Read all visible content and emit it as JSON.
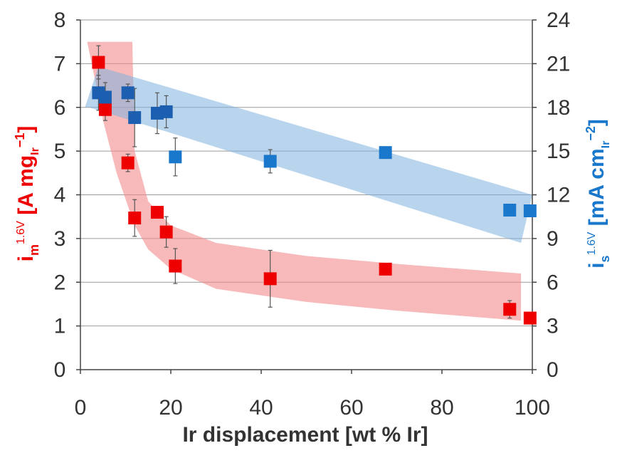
{
  "chart_data": {
    "type": "scatter",
    "title": "",
    "xlabel": "Ir displacement [wt % Ir]",
    "ylabel_left": {
      "main": "i",
      "sub": "m",
      "sup": "1.6V",
      "unit": " [A mg",
      "unit_sub": "Ir",
      "unit_sup": "−1",
      "unit_end": "]"
    },
    "ylabel_right": {
      "main": "i",
      "sub": "s",
      "sup": "1.6V",
      "unit": " [mA cm",
      "unit_sub": "Ir",
      "unit_sup": "−2",
      "unit_end": "]"
    },
    "xlim": [
      0,
      100
    ],
    "ylim_left": [
      0,
      8
    ],
    "ylim_right": [
      0,
      24
    ],
    "x_ticks": [
      "0",
      "20",
      "40",
      "60",
      "80",
      "100"
    ],
    "y_ticks_left": [
      "0",
      "1",
      "2",
      "3",
      "4",
      "5",
      "6",
      "7",
      "8"
    ],
    "y_ticks_right": [
      "0",
      "3",
      "6",
      "9",
      "12",
      "15",
      "18",
      "21",
      "24"
    ],
    "grid": true,
    "series": [
      {
        "axis": "left",
        "color": "#ee0000",
        "points": [
          {
            "x": 4,
            "y": 7.03,
            "err": 0.38
          },
          {
            "x": 5.5,
            "y": 5.95,
            "err": 0.25
          },
          {
            "x": 10.5,
            "y": 4.73,
            "err": 0.2
          },
          {
            "x": 12,
            "y": 3.47,
            "err": 0.42
          },
          {
            "x": 17,
            "y": 3.6,
            "err": 0.12
          },
          {
            "x": 19,
            "y": 3.15,
            "err": 0.35
          },
          {
            "x": 21,
            "y": 2.37,
            "err": 0.4
          },
          {
            "x": 42,
            "y": 2.08,
            "err": 0.65
          },
          {
            "x": 67.5,
            "y": 2.3,
            "err": 0.06
          },
          {
            "x": 95,
            "y": 1.38,
            "err": 0.2
          },
          {
            "x": 99.5,
            "y": 1.18,
            "err": 0.06
          }
        ]
      },
      {
        "axis": "right",
        "color": "#1c5fb0",
        "points": [
          {
            "x": 4,
            "y": 19.0,
            "err": 1.2
          },
          {
            "x": 5.5,
            "y": 18.7,
            "err": 1.0
          },
          {
            "x": 10.5,
            "y": 19.0,
            "err": 0.6
          },
          {
            "x": 12,
            "y": 17.3,
            "err": 2.0
          },
          {
            "x": 17,
            "y": 17.6,
            "err": 1.4
          },
          {
            "x": 19,
            "y": 17.7,
            "err": 1.1
          }
        ]
      },
      {
        "axis": "right",
        "color": "#1a78cc",
        "points": [
          {
            "x": 21,
            "y": 14.6,
            "err": 1.3
          },
          {
            "x": 42,
            "y": 14.3,
            "err": 0.8
          },
          {
            "x": 67.5,
            "y": 14.9,
            "err": 0.2
          },
          {
            "x": 95,
            "y": 10.95,
            "err": 0.2
          },
          {
            "x": 99.5,
            "y": 10.9,
            "err": 0.2
          }
        ]
      }
    ],
    "bands": [
      {
        "axis": "left",
        "color": "#f28a8a",
        "opacity": 0.6,
        "upper": [
          [
            1.5,
            7.5
          ],
          [
            11.5,
            7.5
          ],
          [
            12,
            5.0
          ],
          [
            15,
            3.85
          ],
          [
            20,
            3.3
          ],
          [
            30,
            2.9
          ],
          [
            50,
            2.6
          ],
          [
            70,
            2.42
          ],
          [
            97.5,
            2.2
          ]
        ],
        "lower": [
          [
            97.5,
            1.12
          ],
          [
            70,
            1.35
          ],
          [
            50,
            1.55
          ],
          [
            30,
            1.85
          ],
          [
            20,
            2.3
          ],
          [
            15,
            2.75
          ],
          [
            12,
            3.3
          ],
          [
            8,
            4.5
          ],
          [
            5,
            5.7
          ],
          [
            2.5,
            7.0
          ]
        ]
      },
      {
        "axis": "right",
        "color": "#7fb3e0",
        "opacity": 0.55,
        "upper": [
          [
            1,
            18.0
          ],
          [
            4,
            20.8
          ],
          [
            100,
            12.0
          ]
        ],
        "lower": [
          [
            97.5,
            8.7
          ],
          [
            2,
            18.0
          ]
        ]
      }
    ]
  }
}
